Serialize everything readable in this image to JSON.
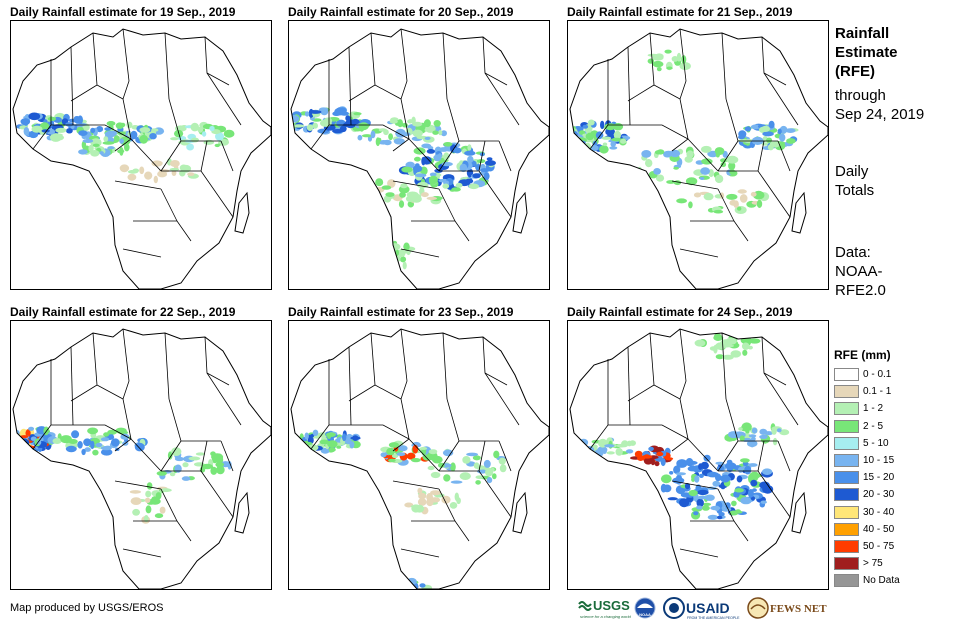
{
  "panels": [
    {
      "title": "Daily Rainfall estimate for 19 Sep., 2019",
      "pattern": "west_sahel"
    },
    {
      "title": "Daily Rainfall estimate for 20 Sep., 2019",
      "pattern": "central_belt"
    },
    {
      "title": "Daily Rainfall estimate for 21 Sep., 2019",
      "pattern": "west_east"
    },
    {
      "title": "Daily Rainfall estimate for 22 Sep., 2019",
      "pattern": "west_coast"
    },
    {
      "title": "Daily Rainfall estimate for 23 Sep., 2019",
      "pattern": "west_cameroon"
    },
    {
      "title": "Daily Rainfall estimate for 24 Sep., 2019",
      "pattern": "congo_basin"
    }
  ],
  "sidebar": {
    "title_line1": "Rainfall",
    "title_line2": "Estimate",
    "title_line3": "(RFE)",
    "through_line1": "through",
    "through_line2": "Sep 24, 2019",
    "daily_line1": "Daily",
    "daily_line2": "Totals",
    "data_line1": "Data:",
    "data_line2": "NOAA-",
    "data_line3": "RFE2.0"
  },
  "legend": {
    "title": "RFE (mm)",
    "items": [
      {
        "label": "0 - 0.1",
        "color": "#ffffff"
      },
      {
        "label": "0.1 - 1",
        "color": "#e6d7b9"
      },
      {
        "label": "1 - 2",
        "color": "#b4f0b4"
      },
      {
        "label": "2 - 5",
        "color": "#78e678"
      },
      {
        "label": "5 - 10",
        "color": "#a6eef0"
      },
      {
        "label": "10 - 15",
        "color": "#78b4f0"
      },
      {
        "label": "15 - 20",
        "color": "#4a90ea"
      },
      {
        "label": "20 - 30",
        "color": "#1e5ad2"
      },
      {
        "label": "30 - 40",
        "color": "#ffe678"
      },
      {
        "label": "40 - 50",
        "color": "#ffa000"
      },
      {
        "label": "50 - 75",
        "color": "#ff3c00"
      },
      {
        "label": "> 75",
        "color": "#a01e1e"
      },
      {
        "label": "No Data",
        "color": "#969696"
      }
    ]
  },
  "credit": "Map produced by USGS/EROS",
  "logos": {
    "usgs": "USGS",
    "usgs_tagline": "science for a changing world",
    "noaa": "NOAA",
    "usaid": "USAID",
    "usaid_tagline": "FROM THE AMERICAN PEOPLE",
    "fewsnet": "FEWS NET"
  }
}
